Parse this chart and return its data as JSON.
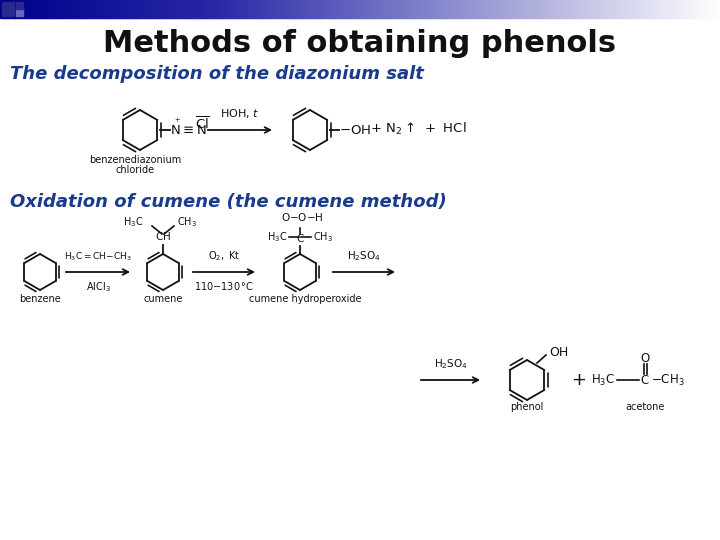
{
  "title": "Methods of obtaining phenols",
  "title_fontsize": 22,
  "title_fontweight": "bold",
  "title_color": "#111111",
  "subtitle1": "The decomposition of the diazonium salt",
  "subtitle1_fontsize": 13,
  "subtitle1_color": "#1a3a8c",
  "subtitle2": "Oxidation of cumene (the cumene method)",
  "subtitle2_fontsize": 13,
  "subtitle2_color": "#1a3a8c",
  "background_color": "#ffffff",
  "line_color": "#111111",
  "label_color": "#111111",
  "header_bar_color": "#2a2a8c",
  "header_bar_color2": "#aaaadd",
  "corner_sq_color": "#2a2a8c",
  "corner_sq2_color": "#6666bb"
}
